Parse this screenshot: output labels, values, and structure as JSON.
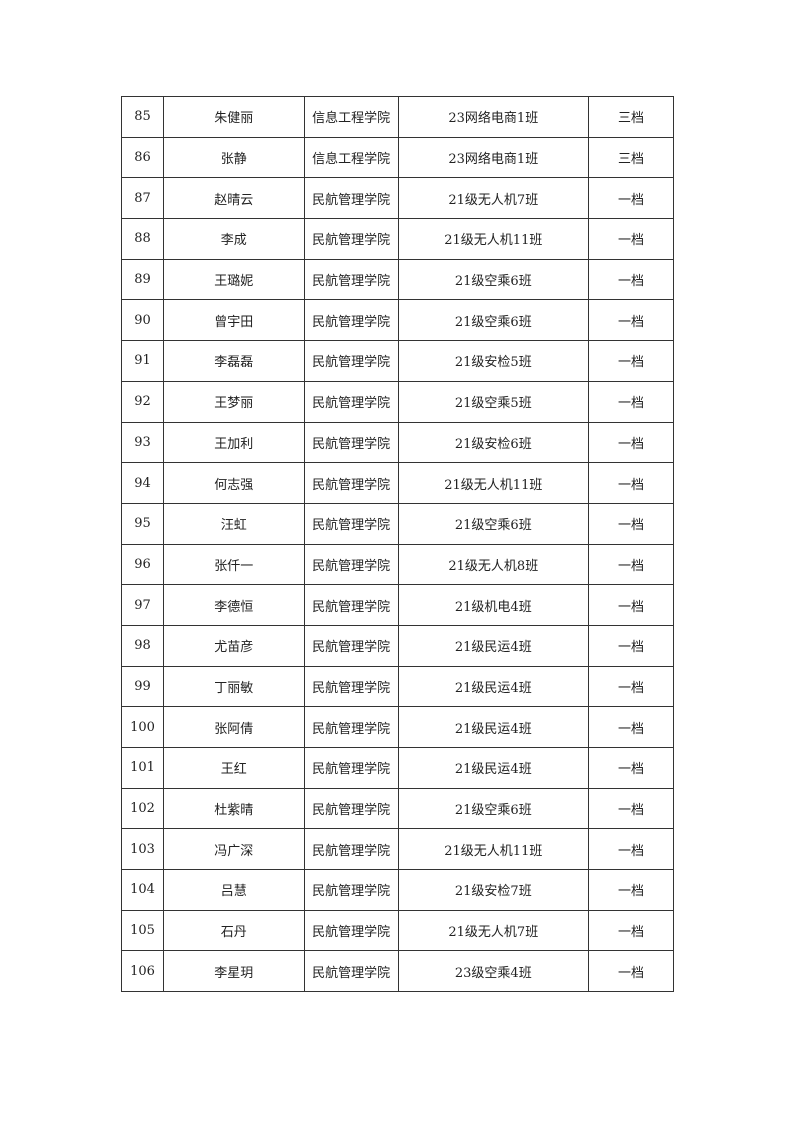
{
  "rows": [
    [
      "85",
      "朱健丽",
      "信息工程学院",
      "23网络电商1班",
      "三档"
    ],
    [
      "86",
      "张静",
      "信息工程学院",
      "23网络电商1班",
      "三档"
    ],
    [
      "87",
      "赵晴云",
      "民航管理学院",
      "21级无人机7班",
      "一档"
    ],
    [
      "88",
      "李成",
      "民航管理学院",
      "21级无人机11班",
      "一档"
    ],
    [
      "89",
      "王璐妮",
      "民航管理学院",
      "21级空乘6班",
      "一档"
    ],
    [
      "90",
      "曾宇田",
      "民航管理学院",
      "21级空乘6班",
      "一档"
    ],
    [
      "91",
      "李磊磊",
      "民航管理学院",
      "21级安检5班",
      "一档"
    ],
    [
      "92",
      "王梦丽",
      "民航管理学院",
      "21级空乘5班",
      "一档"
    ],
    [
      "93",
      "王加利",
      "民航管理学院",
      "21级安检6班",
      "一档"
    ],
    [
      "94",
      "何志强",
      "民航管理学院",
      "21级无人机11班",
      "一档"
    ],
    [
      "95",
      "汪虹",
      "民航管理学院",
      "21级空乘6班",
      "一档"
    ],
    [
      "96",
      "张仟一",
      "民航管理学院",
      "21级无人机8班",
      "一档"
    ],
    [
      "97",
      "李德恒",
      "民航管理学院",
      "21级机电4班",
      "一档"
    ],
    [
      "98",
      "尤苗彦",
      "民航管理学院",
      "21级民运4班",
      "一档"
    ],
    [
      "99",
      "丁丽敏",
      "民航管理学院",
      "21级民运4班",
      "一档"
    ],
    [
      "100",
      "张阿倩",
      "民航管理学院",
      "21级民运4班",
      "一档"
    ],
    [
      "101",
      "王红",
      "民航管理学院",
      "21级民运4班",
      "一档"
    ],
    [
      "102",
      "杜紫晴",
      "民航管理学院",
      "21级空乘6班",
      "一档"
    ],
    [
      "103",
      "冯广深",
      "民航管理学院",
      "21级无人机11班",
      "一档"
    ],
    [
      "104",
      "吕慧",
      "民航管理学院",
      "21级安检7班",
      "一档"
    ],
    [
      "105",
      "石丹",
      "民航管理学院",
      "21级无人机7班",
      "一档"
    ],
    [
      "106",
      "李星玥",
      "民航管理学院",
      "23级空乘4班",
      "一档"
    ]
  ]
}
